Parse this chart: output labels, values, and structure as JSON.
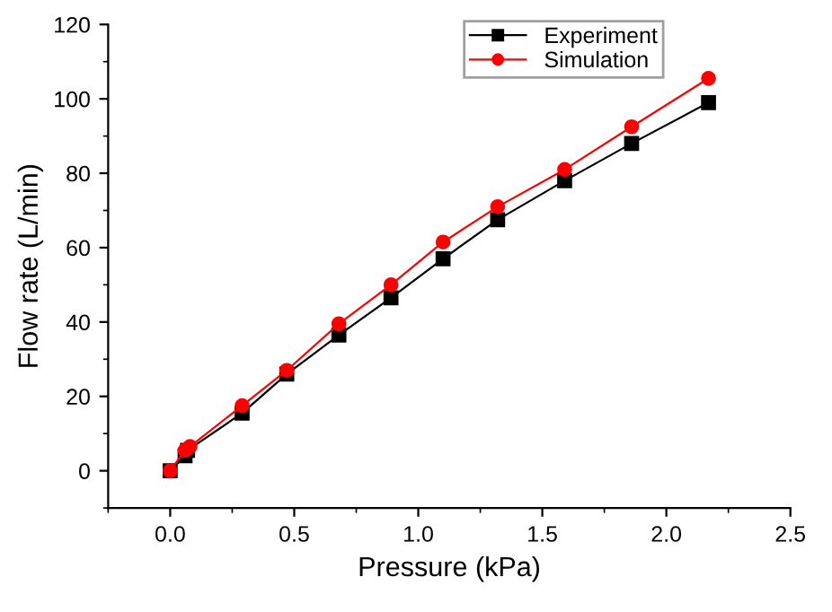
{
  "chart_data": {
    "type": "line",
    "xlabel": "Pressure (kPa)",
    "ylabel": "Flow rate (L/min)",
    "xlim": [
      -0.25,
      2.5
    ],
    "xticks": [
      {
        "value": 0,
        "label": "0.0"
      },
      0.5,
      {
        "value": 1,
        "label": "1.0"
      },
      1.5,
      {
        "value": 2,
        "label": "2.0"
      },
      2.5
    ],
    "ylim": [
      -10,
      120
    ],
    "yticks": [
      0,
      20,
      40,
      60,
      80,
      100,
      120
    ],
    "grid": false,
    "legend": "top right",
    "series": [
      {
        "name": "Experiment",
        "color": "#000000",
        "marker": "square",
        "x": [
          0,
          0.06,
          0.07,
          0.29,
          0.47,
          0.68,
          0.89,
          1.1,
          1.32,
          1.59,
          1.86,
          2.17
        ],
        "values": [
          0,
          4,
          5.5,
          15.5,
          26,
          36.5,
          46.5,
          57,
          67.5,
          78,
          88,
          99
        ]
      },
      {
        "name": "Simulation",
        "color": "#ff0000",
        "marker": "circle",
        "x": [
          0,
          0.06,
          0.08,
          0.29,
          0.47,
          0.68,
          0.89,
          1.1,
          1.32,
          1.59,
          1.86,
          2.17
        ],
        "values": [
          0,
          5.5,
          6.5,
          17.5,
          27,
          39.5,
          50,
          61.5,
          71,
          81,
          92.5,
          105.5
        ]
      }
    ]
  }
}
